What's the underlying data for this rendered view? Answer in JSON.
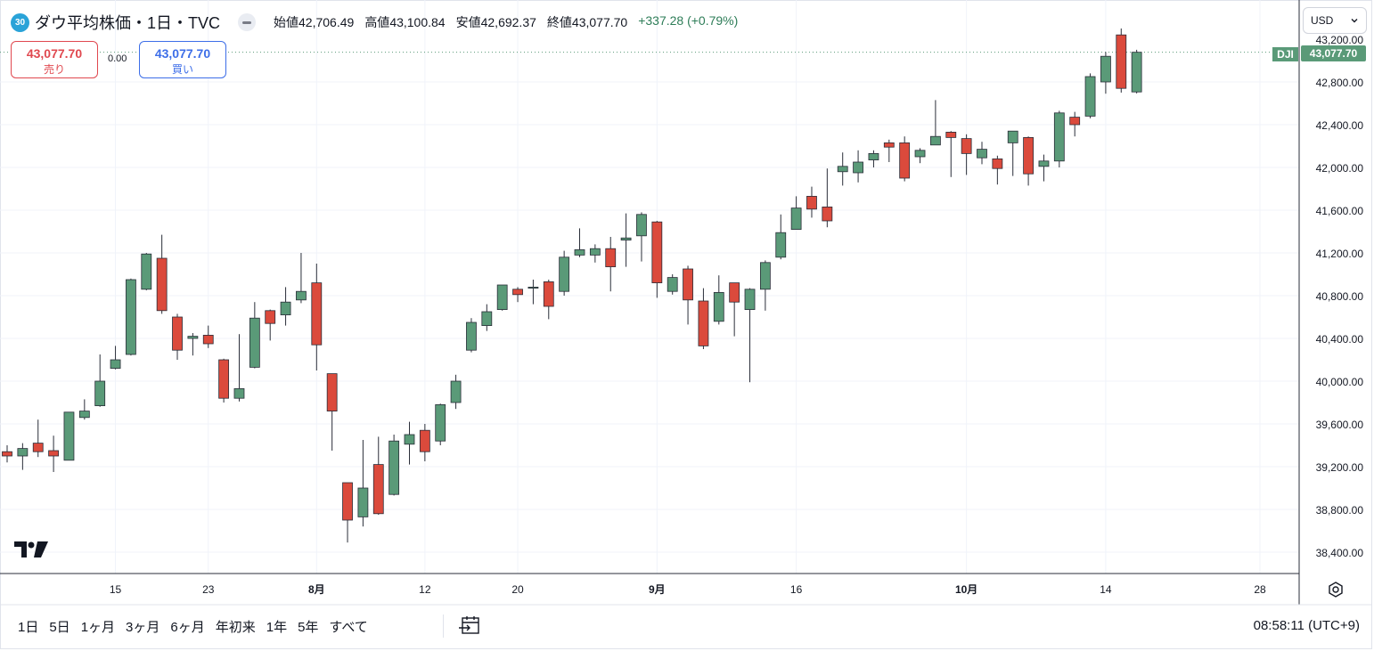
{
  "header": {
    "badge": "30",
    "title": "ダウ平均株価・1日・TVC",
    "open_label": "始値",
    "open": "42,706.49",
    "high_label": "高値",
    "high": "43,100.84",
    "low_label": "安値",
    "low": "42,692.37",
    "close_label": "終値",
    "close": "43,077.70",
    "change": "+337.28 (+0.79%)"
  },
  "trade": {
    "sell_price": "43,077.70",
    "sell_label": "売り",
    "spread": "0.00",
    "buy_price": "43,077.70",
    "buy_label": "買い"
  },
  "currency": {
    "selected": "USD"
  },
  "price_tag": {
    "symbol": "DJI",
    "value": "43,077.70"
  },
  "bottom": {
    "ranges": [
      "1日",
      "5日",
      "1ヶ月",
      "3ヶ月",
      "6ヶ月",
      "年初来",
      "1年",
      "5年",
      "すべて"
    ],
    "time": "08:58:11 (UTC+9)"
  },
  "colors": {
    "up": "#5a9a78",
    "down": "#db4a3c",
    "grid": "#f0f3fa"
  },
  "icons": [
    "chevron-down-icon",
    "settings-icon",
    "calendar-goto-icon",
    "tradingview-logo"
  ],
  "chart_data": {
    "type": "candlestick",
    "title": "ダウ平均株価・1日・TVC",
    "y_ticks": [
      "38,400.00",
      "38,800.00",
      "39,200.00",
      "39,600.00",
      "40,000.00",
      "40,400.00",
      "40,800.00",
      "41,200.00",
      "41,600.00",
      "42,000.00",
      "42,400.00",
      "42,800.00"
    ],
    "y_tick_values": [
      38400,
      38800,
      39200,
      39600,
      40000,
      40400,
      40800,
      41200,
      41600,
      42000,
      42400,
      42800
    ],
    "ylim": [
      38200,
      43450
    ],
    "x_labels": [
      {
        "label": "15",
        "index": 7
      },
      {
        "label": "23",
        "index": 13
      },
      {
        "label": "8月",
        "index": 20,
        "bold": true
      },
      {
        "label": "12",
        "index": 27
      },
      {
        "label": "20",
        "index": 33
      },
      {
        "label": "9月",
        "index": 42,
        "bold": true
      },
      {
        "label": "16",
        "index": 51
      },
      {
        "label": "10月",
        "index": 62,
        "bold": true
      },
      {
        "label": "14",
        "index": 71
      },
      {
        "label": "28",
        "index": 81
      }
    ],
    "last_price": 43077.7,
    "grid": true,
    "candles": [
      {
        "o": 39340,
        "h": 39400,
        "l": 39240,
        "c": 39300
      },
      {
        "o": 39300,
        "h": 39420,
        "l": 39170,
        "c": 39370
      },
      {
        "o": 39420,
        "h": 39640,
        "l": 39290,
        "c": 39340
      },
      {
        "o": 39350,
        "h": 39490,
        "l": 39150,
        "c": 39300
      },
      {
        "o": 39260,
        "h": 39700,
        "l": 39260,
        "c": 39710
      },
      {
        "o": 39660,
        "h": 39830,
        "l": 39640,
        "c": 39720
      },
      {
        "o": 39770,
        "h": 40250,
        "l": 39760,
        "c": 40000
      },
      {
        "o": 40120,
        "h": 40330,
        "l": 40110,
        "c": 40200
      },
      {
        "o": 40250,
        "h": 40960,
        "l": 40240,
        "c": 40950
      },
      {
        "o": 40860,
        "h": 41200,
        "l": 40850,
        "c": 41190
      },
      {
        "o": 41150,
        "h": 41370,
        "l": 40630,
        "c": 40660
      },
      {
        "o": 40600,
        "h": 40630,
        "l": 40200,
        "c": 40290
      },
      {
        "o": 40400,
        "h": 40450,
        "l": 40240,
        "c": 40420
      },
      {
        "o": 40430,
        "h": 40520,
        "l": 40310,
        "c": 40350
      },
      {
        "o": 40200,
        "h": 40210,
        "l": 39800,
        "c": 39840
      },
      {
        "o": 39840,
        "h": 40440,
        "l": 39810,
        "c": 39930
      },
      {
        "o": 40130,
        "h": 40740,
        "l": 40120,
        "c": 40590
      },
      {
        "o": 40660,
        "h": 40670,
        "l": 40380,
        "c": 40540
      },
      {
        "o": 40620,
        "h": 40880,
        "l": 40520,
        "c": 40740
      },
      {
        "o": 40760,
        "h": 41200,
        "l": 40730,
        "c": 40840
      },
      {
        "o": 40920,
        "h": 41100,
        "l": 40100,
        "c": 40340
      },
      {
        "o": 40070,
        "h": 40070,
        "l": 39350,
        "c": 39720
      },
      {
        "o": 39050,
        "h": 39050,
        "l": 38490,
        "c": 38700
      },
      {
        "o": 38730,
        "h": 39450,
        "l": 38640,
        "c": 39000
      },
      {
        "o": 39220,
        "h": 39480,
        "l": 38750,
        "c": 38760
      },
      {
        "o": 38940,
        "h": 39500,
        "l": 38930,
        "c": 39440
      },
      {
        "o": 39410,
        "h": 39620,
        "l": 39220,
        "c": 39500
      },
      {
        "o": 39540,
        "h": 39600,
        "l": 39250,
        "c": 39340
      },
      {
        "o": 39440,
        "h": 39790,
        "l": 39400,
        "c": 39780
      },
      {
        "o": 39800,
        "h": 40060,
        "l": 39740,
        "c": 40000
      },
      {
        "o": 40290,
        "h": 40590,
        "l": 40270,
        "c": 40550
      },
      {
        "o": 40520,
        "h": 40720,
        "l": 40470,
        "c": 40650
      },
      {
        "o": 40670,
        "h": 40900,
        "l": 40660,
        "c": 40900
      },
      {
        "o": 40860,
        "h": 40880,
        "l": 40740,
        "c": 40810
      },
      {
        "o": 40870,
        "h": 40950,
        "l": 40720,
        "c": 40880
      },
      {
        "o": 40930,
        "h": 40950,
        "l": 40580,
        "c": 40700
      },
      {
        "o": 40840,
        "h": 41220,
        "l": 40800,
        "c": 41160
      },
      {
        "o": 41180,
        "h": 41430,
        "l": 41160,
        "c": 41230
      },
      {
        "o": 41180,
        "h": 41280,
        "l": 41110,
        "c": 41240
      },
      {
        "o": 41240,
        "h": 41350,
        "l": 40840,
        "c": 41070
      },
      {
        "o": 41320,
        "h": 41570,
        "l": 41070,
        "c": 41340
      },
      {
        "o": 41360,
        "h": 41580,
        "l": 41120,
        "c": 41560
      },
      {
        "o": 41490,
        "h": 41500,
        "l": 40780,
        "c": 40920
      },
      {
        "o": 40840,
        "h": 41000,
        "l": 40810,
        "c": 40970
      },
      {
        "o": 41050,
        "h": 41080,
        "l": 40530,
        "c": 40760
      },
      {
        "o": 40750,
        "h": 40870,
        "l": 40300,
        "c": 40330
      },
      {
        "o": 40560,
        "h": 40990,
        "l": 40530,
        "c": 40830
      },
      {
        "o": 40920,
        "h": 40920,
        "l": 40420,
        "c": 40740
      },
      {
        "o": 40670,
        "h": 40870,
        "l": 39990,
        "c": 40860
      },
      {
        "o": 40860,
        "h": 41130,
        "l": 40660,
        "c": 41110
      },
      {
        "o": 41160,
        "h": 41560,
        "l": 41140,
        "c": 41390
      },
      {
        "o": 41420,
        "h": 41730,
        "l": 41420,
        "c": 41620
      },
      {
        "o": 41730,
        "h": 41820,
        "l": 41530,
        "c": 41610
      },
      {
        "o": 41630,
        "h": 41990,
        "l": 41440,
        "c": 41500
      },
      {
        "o": 41960,
        "h": 42140,
        "l": 41830,
        "c": 42010
      },
      {
        "o": 41950,
        "h": 42160,
        "l": 41860,
        "c": 42050
      },
      {
        "o": 42070,
        "h": 42160,
        "l": 42000,
        "c": 42130
      },
      {
        "o": 42230,
        "h": 42260,
        "l": 42050,
        "c": 42190
      },
      {
        "o": 42230,
        "h": 42290,
        "l": 41870,
        "c": 41900
      },
      {
        "o": 42100,
        "h": 42180,
        "l": 42040,
        "c": 42160
      },
      {
        "o": 42210,
        "h": 42630,
        "l": 42210,
        "c": 42290
      },
      {
        "o": 42330,
        "h": 42340,
        "l": 41910,
        "c": 42280
      },
      {
        "o": 42270,
        "h": 42310,
        "l": 41930,
        "c": 42130
      },
      {
        "o": 42090,
        "h": 42240,
        "l": 42030,
        "c": 42170
      },
      {
        "o": 42080,
        "h": 42110,
        "l": 41840,
        "c": 41990
      },
      {
        "o": 42230,
        "h": 42340,
        "l": 41920,
        "c": 42340
      },
      {
        "o": 42280,
        "h": 42290,
        "l": 41830,
        "c": 41940
      },
      {
        "o": 42010,
        "h": 42120,
        "l": 41870,
        "c": 42060
      },
      {
        "o": 42060,
        "h": 42530,
        "l": 42000,
        "c": 42510
      },
      {
        "o": 42470,
        "h": 42520,
        "l": 42290,
        "c": 42400
      },
      {
        "o": 42480,
        "h": 42880,
        "l": 42460,
        "c": 42850
      },
      {
        "o": 42800,
        "h": 43080,
        "l": 42690,
        "c": 43040
      },
      {
        "o": 43240,
        "h": 43300,
        "l": 42700,
        "c": 42740
      },
      {
        "o": 42706.49,
        "h": 43100.84,
        "l": 42692.37,
        "c": 43077.7
      }
    ]
  }
}
